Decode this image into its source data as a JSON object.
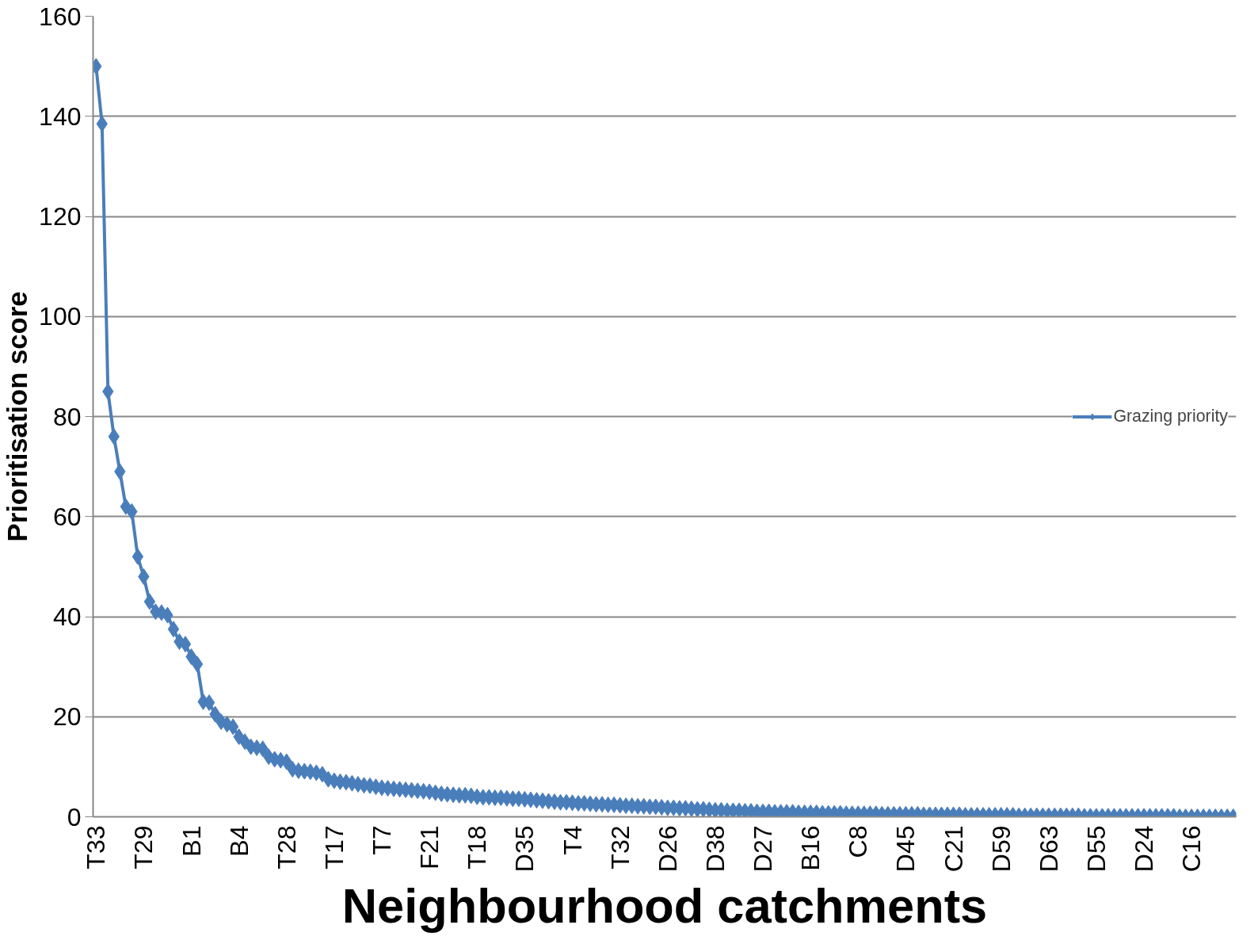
{
  "chart_data": {
    "type": "line",
    "xlabel": "Neighbourhood catchments",
    "ylabel": "Prioritisation score",
    "categories": [
      "T33",
      null,
      null,
      null,
      null,
      null,
      null,
      null,
      "T29",
      null,
      null,
      null,
      null,
      null,
      null,
      null,
      "B1",
      null,
      null,
      null,
      null,
      null,
      null,
      null,
      "B4",
      null,
      null,
      null,
      null,
      null,
      null,
      null,
      "T28",
      null,
      null,
      null,
      null,
      null,
      null,
      null,
      "T17",
      null,
      null,
      null,
      null,
      null,
      null,
      null,
      "T7",
      null,
      null,
      null,
      null,
      null,
      null,
      null,
      "F21",
      null,
      null,
      null,
      null,
      null,
      null,
      null,
      "T18",
      null,
      null,
      null,
      null,
      null,
      null,
      null,
      "D35",
      null,
      null,
      null,
      null,
      null,
      null,
      null,
      "T4",
      null,
      null,
      null,
      null,
      null,
      null,
      null,
      "T32",
      null,
      null,
      null,
      null,
      null,
      null,
      null,
      "D26",
      null,
      null,
      null,
      null,
      null,
      null,
      null,
      "D38",
      null,
      null,
      null,
      null,
      null,
      null,
      null,
      "D27",
      null,
      null,
      null,
      null,
      null,
      null,
      null,
      "B16",
      null,
      null,
      null,
      null,
      null,
      null,
      null,
      "C8",
      null,
      null,
      null,
      null,
      null,
      null,
      null,
      "D45",
      null,
      null,
      null,
      null,
      null,
      null,
      null,
      "C21",
      null,
      null,
      null,
      null,
      null,
      null,
      null,
      "D59",
      null,
      null,
      null,
      null,
      null,
      null,
      null,
      "D63",
      null,
      null,
      null,
      null,
      null,
      null,
      null,
      "D55",
      null,
      null,
      null,
      null,
      null,
      null,
      null,
      "D24",
      null,
      null,
      null,
      null,
      null,
      null,
      null,
      "C16",
      null,
      null,
      null,
      null,
      null,
      null,
      null
    ],
    "series": [
      {
        "name": "Grazing priority",
        "color": "#4a7ebb",
        "values": [
          150,
          138.5,
          85,
          76,
          69,
          62,
          61,
          52,
          48,
          43,
          41,
          40.8,
          40.3,
          37.5,
          35,
          34.5,
          32,
          30.5,
          23,
          22.8,
          20.5,
          19,
          18.5,
          18,
          16,
          15,
          14,
          13.8,
          13.6,
          12,
          11.5,
          11.3,
          11,
          9.5,
          9.2,
          9.1,
          9,
          8.8,
          8.5,
          7.5,
          7.2,
          7,
          6.9,
          6.7,
          6.5,
          6.3,
          6.2,
          6,
          5.8,
          5.7,
          5.6,
          5.5,
          5.4,
          5.3,
          5.2,
          5.1,
          5.0,
          4.8,
          4.6,
          4.5,
          4.4,
          4.3,
          4.3,
          4.2,
          4.0,
          3.9,
          3.9,
          3.8,
          3.8,
          3.7,
          3.6,
          3.6,
          3.5,
          3.4,
          3.3,
          3.2,
          3.1,
          3.0,
          2.9,
          2.9,
          2.8,
          2.7,
          2.7,
          2.6,
          2.5,
          2.5,
          2.4,
          2.4,
          2.3,
          2.2,
          2.2,
          2.1,
          2.1,
          2.0,
          2.0,
          1.9,
          1.8,
          1.8,
          1.7,
          1.7,
          1.6,
          1.5,
          1.5,
          1.4,
          1.3,
          1.3,
          1.2,
          1.2,
          1.2,
          1.1,
          1.1,
          1.0,
          1.0,
          1.0,
          0.9,
          0.9,
          0.9,
          0.9,
          0.8,
          0.8,
          0.8,
          0.8,
          0.7,
          0.7,
          0.7,
          0.7,
          0.6,
          0.6,
          0.6,
          0.6,
          0.6,
          0.6,
          0.5,
          0.5,
          0.5,
          0.5,
          0.5,
          0.5,
          0.5,
          0.4,
          0.4,
          0.4,
          0.4,
          0.4,
          0.4,
          0.4,
          0.3,
          0.3,
          0.3,
          0.3,
          0.3,
          0.3,
          0.3,
          0.3,
          0.3,
          0.2,
          0.2,
          0.2,
          0.2,
          0.2,
          0.2,
          0.2,
          0.2,
          0.2,
          0.2,
          0.2,
          0.1,
          0.1,
          0.1,
          0.1,
          0.1,
          0.1,
          0.1,
          0.1,
          0.1,
          0.1,
          0.1,
          0.1,
          0.1,
          0.1,
          0.1,
          0.1,
          0.0,
          0.0,
          0.0,
          0.0,
          0.0,
          0.0,
          0.0,
          0.0,
          0.0,
          0.0
        ]
      }
    ],
    "ylim": [
      0,
      160
    ],
    "yticks": [
      0,
      20,
      40,
      60,
      80,
      100,
      120,
      140,
      160
    ],
    "grid": "y",
    "legend": "right",
    "marker": "diamond",
    "line_style": "solid"
  }
}
